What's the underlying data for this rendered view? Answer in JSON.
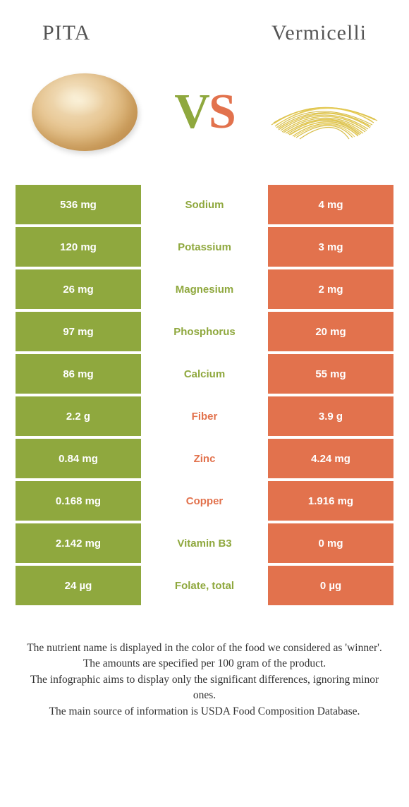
{
  "header": {
    "left_title": "PITA",
    "right_title": "Vermicelli",
    "vs_v": "V",
    "vs_s": "S"
  },
  "colors": {
    "left_bg": "#8fa83e",
    "right_bg": "#e2724d",
    "text": "#ffffff"
  },
  "rows": [
    {
      "left": "536 mg",
      "label": "Sodium",
      "right": "4 mg",
      "winner": "left"
    },
    {
      "left": "120 mg",
      "label": "Potassium",
      "right": "3 mg",
      "winner": "left"
    },
    {
      "left": "26 mg",
      "label": "Magnesium",
      "right": "2 mg",
      "winner": "left"
    },
    {
      "left": "97 mg",
      "label": "Phosphorus",
      "right": "20 mg",
      "winner": "left"
    },
    {
      "left": "86 mg",
      "label": "Calcium",
      "right": "55 mg",
      "winner": "left"
    },
    {
      "left": "2.2 g",
      "label": "Fiber",
      "right": "3.9 g",
      "winner": "right"
    },
    {
      "left": "0.84 mg",
      "label": "Zinc",
      "right": "4.24 mg",
      "winner": "right"
    },
    {
      "left": "0.168 mg",
      "label": "Copper",
      "right": "1.916 mg",
      "winner": "right"
    },
    {
      "left": "2.142 mg",
      "label": "Vitamin B3",
      "right": "0 mg",
      "winner": "left"
    },
    {
      "left": "24 µg",
      "label": "Folate, total",
      "right": "0 µg",
      "winner": "left"
    }
  ],
  "footer": {
    "line1": "The nutrient name is displayed in the color of the food we considered as 'winner'.",
    "line2": "The amounts are specified per 100 gram of the product.",
    "line3": "The infographic aims to display only the significant differences, ignoring minor ones.",
    "line4": "The main source of information is USDA Food Composition Database."
  }
}
